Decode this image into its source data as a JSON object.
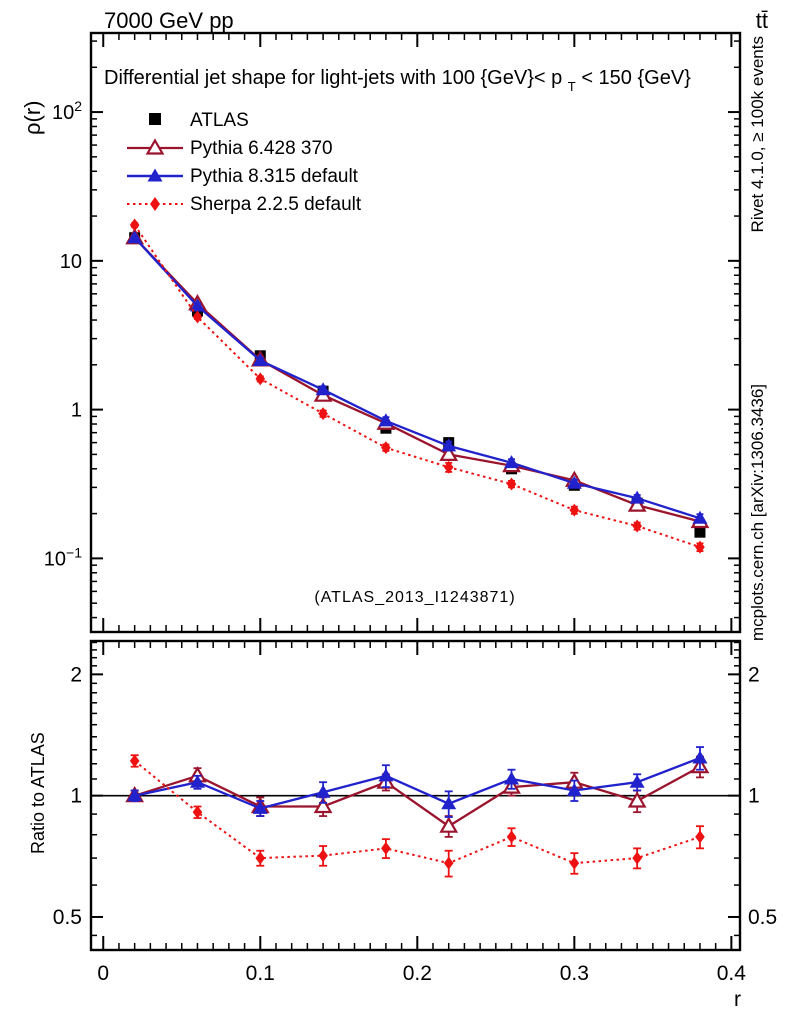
{
  "header": {
    "left": "7000 GeV pp",
    "right": "tt̄"
  },
  "main_title": {
    "before_sub": "Differential jet shape for light-jets with 100 {GeV}< p",
    "sub": "T",
    "after_sub": " < 150 {GeV}"
  },
  "axes": {
    "main_ylabel": "ρ(r)",
    "ratio_ylabel": "Ratio to ATLAS",
    "xlabel": "r"
  },
  "watermark": "(ATLAS_2013_I1243871)",
  "side_notes": {
    "generator": "Rivet 4.1.0, ≥ 100k events",
    "site": "mcplots.cern.ch [arXiv:1306.3436]"
  },
  "legend": {
    "items": [
      {
        "label": "ATLAS"
      },
      {
        "label": "Pythia 6.428 370"
      },
      {
        "label": "Pythia 8.315 default"
      },
      {
        "label": "Sherpa 2.2.5 default"
      }
    ]
  },
  "colors": {
    "atlas": "#000000",
    "pythia6": "#9b142d",
    "pythia8": "#2222cc",
    "sherpa": "#ee1111",
    "note_gray": "#8a8a8a",
    "watermark_gray": "#9c9c9c"
  },
  "chart_data": [
    {
      "type": "line",
      "title": "Differential jet shape for light-jets with 100 {GeV}< p_T < 150 {GeV}",
      "xlabel": "r",
      "ylabel": "ρ(r)",
      "xscale": "linear",
      "yscale": "log",
      "xlim": [
        -0.0078,
        0.4055
      ],
      "ylim": [
        0.032,
        340
      ],
      "grid": false,
      "legend_position": "top-left",
      "xticks": {
        "major": [
          0,
          0.1,
          0.2,
          0.3,
          0.4
        ],
        "labels": [
          "0",
          "0.1",
          "0.2",
          "0.3",
          "0.4"
        ],
        "minor_step": 0.01
      },
      "yticks": {
        "major": [
          100,
          10,
          1,
          0.1
        ],
        "labels": [
          {
            "base": "10",
            "exp": "2"
          },
          {
            "base": "10"
          },
          {
            "base": "1"
          },
          {
            "base": "10",
            "exp": "−1"
          }
        ]
      },
      "x": [
        0.02,
        0.06,
        0.1,
        0.14,
        0.18,
        0.22,
        0.26,
        0.3,
        0.34,
        0.38
      ],
      "series": [
        {
          "id": "atlas",
          "name": "ATLAS",
          "color_key": "atlas",
          "marker": "square-filled",
          "line": "none",
          "values": [
            14.3,
            4.6,
            2.3,
            1.33,
            0.75,
            0.6,
            0.4,
            0.31,
            0.235,
            0.15
          ],
          "rel_err": [
            0.02,
            0.02,
            0.02,
            0.03,
            0.03,
            0.03,
            0.03,
            0.03,
            0.04,
            0.05
          ]
        },
        {
          "id": "pythia6",
          "name": "Pythia 6.428 370",
          "color_key": "pythia6",
          "marker": "triangle-open",
          "line": "solid",
          "values": [
            14.3,
            5.15,
            2.16,
            1.25,
            0.81,
            0.5,
            0.42,
            0.335,
            0.228,
            0.177
          ],
          "rel_err": [
            0.03,
            0.045,
            0.05,
            0.05,
            0.05,
            0.06,
            0.05,
            0.055,
            0.06,
            0.06
          ]
        },
        {
          "id": "pythia8",
          "name": "Pythia 8.315 default",
          "color_key": "pythia8",
          "marker": "triangle-filled",
          "line": "solid",
          "values": [
            14.3,
            4.97,
            2.14,
            1.36,
            0.84,
            0.57,
            0.44,
            0.32,
            0.254,
            0.186
          ],
          "rel_err": [
            0.03,
            0.04,
            0.04,
            0.055,
            0.06,
            0.07,
            0.055,
            0.055,
            0.05,
            0.065
          ]
        },
        {
          "id": "sherpa",
          "name": "Sherpa 2.2.5 default",
          "color_key": "sherpa",
          "marker": "diamond-filled",
          "line": "dotted",
          "values": [
            17.4,
            4.19,
            1.61,
            0.94,
            0.555,
            0.41,
            0.316,
            0.211,
            0.165,
            0.119
          ],
          "rel_err": [
            0.03,
            0.03,
            0.04,
            0.05,
            0.05,
            0.07,
            0.05,
            0.055,
            0.055,
            0.06
          ]
        }
      ]
    },
    {
      "type": "line",
      "title": "Ratio to ATLAS",
      "xlabel": "r",
      "ylabel": "Ratio to ATLAS",
      "xscale": "linear",
      "yscale": "log",
      "xlim": [
        -0.0078,
        0.4055
      ],
      "ylim": [
        0.414,
        2.42
      ],
      "grid": false,
      "reference_line": 1,
      "yticks": {
        "major": [
          2,
          1,
          0.5
        ],
        "labels": [
          "2",
          "1",
          "0.5"
        ]
      },
      "x": [
        0.02,
        0.06,
        0.1,
        0.14,
        0.18,
        0.22,
        0.26,
        0.3,
        0.34,
        0.38
      ],
      "series": [
        {
          "id": "pythia6",
          "name": "Pythia 6.428 370",
          "color_key": "pythia6",
          "marker": "triangle-open",
          "line": "solid",
          "ratio": [
            1.0,
            1.12,
            0.94,
            0.94,
            1.08,
            0.84,
            1.05,
            1.08,
            0.97,
            1.18
          ],
          "err": [
            0.03,
            0.05,
            0.05,
            0.05,
            0.05,
            0.05,
            0.05,
            0.06,
            0.06,
            0.07
          ]
        },
        {
          "id": "pythia8",
          "name": "Pythia 8.315 default",
          "color_key": "pythia8",
          "marker": "triangle-filled",
          "line": "solid",
          "ratio": [
            1.0,
            1.08,
            0.93,
            1.02,
            1.12,
            0.955,
            1.1,
            1.03,
            1.08,
            1.24
          ],
          "err": [
            0.03,
            0.04,
            0.04,
            0.06,
            0.07,
            0.07,
            0.06,
            0.06,
            0.05,
            0.08
          ]
        },
        {
          "id": "sherpa",
          "name": "Sherpa 2.2.5 default",
          "color_key": "sherpa",
          "marker": "diamond-filled",
          "line": "dotted",
          "ratio": [
            1.22,
            0.91,
            0.7,
            0.71,
            0.74,
            0.68,
            0.79,
            0.68,
            0.7,
            0.79
          ],
          "err": [
            0.04,
            0.03,
            0.03,
            0.04,
            0.04,
            0.05,
            0.04,
            0.04,
            0.04,
            0.05
          ]
        }
      ]
    }
  ]
}
